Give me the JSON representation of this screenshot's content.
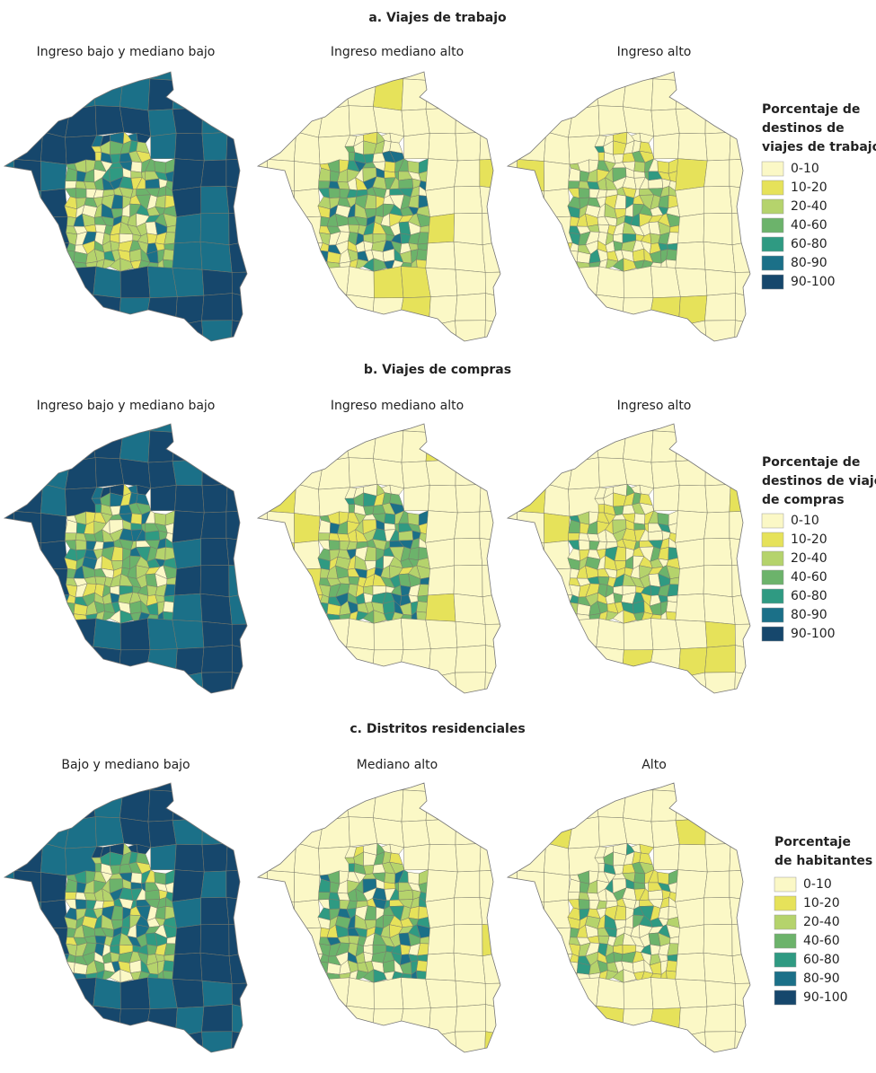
{
  "sections": [
    {
      "title": "a. Viajes de trabajo",
      "panels": [
        "Ingreso bajo y mediano bajo",
        "Ingreso mediano alto",
        "Ingreso alto"
      ],
      "legend": {
        "title_lines": [
          "Porcentaje de",
          "destinos de",
          "viajes de trabajo"
        ],
        "items": [
          "0-10",
          "10-20",
          "20-40",
          "40-60",
          "60-80",
          "80-90",
          "90-100"
        ]
      }
    },
    {
      "title": "b. Viajes de compras",
      "panels": [
        "Ingreso bajo y mediano bajo",
        "Ingreso mediano alto",
        "Ingreso alto"
      ],
      "legend": {
        "title_lines": [
          "Porcentaje de",
          "destinos de viajes",
          "de compras"
        ],
        "items": [
          "0-10",
          "10-20",
          "20-40",
          "40-60",
          "60-80",
          "80-90",
          "90-100"
        ]
      }
    },
    {
      "title": "c. Distritos residenciales",
      "panels": [
        "Bajo y mediano bajo",
        "Mediano alto",
        "Alto"
      ],
      "legend": {
        "title_lines": [
          "Porcentaje",
          "de habitantes"
        ],
        "items": [
          "0-10",
          "10-20",
          "20-40",
          "40-60",
          "60-80",
          "80-90",
          "90-100"
        ]
      }
    }
  ],
  "legend_colors": [
    "#fbf8c6",
    "#e6e25a",
    "#b5d36c",
    "#6cb36b",
    "#2f9a82",
    "#1b7088",
    "#16476c"
  ]
}
